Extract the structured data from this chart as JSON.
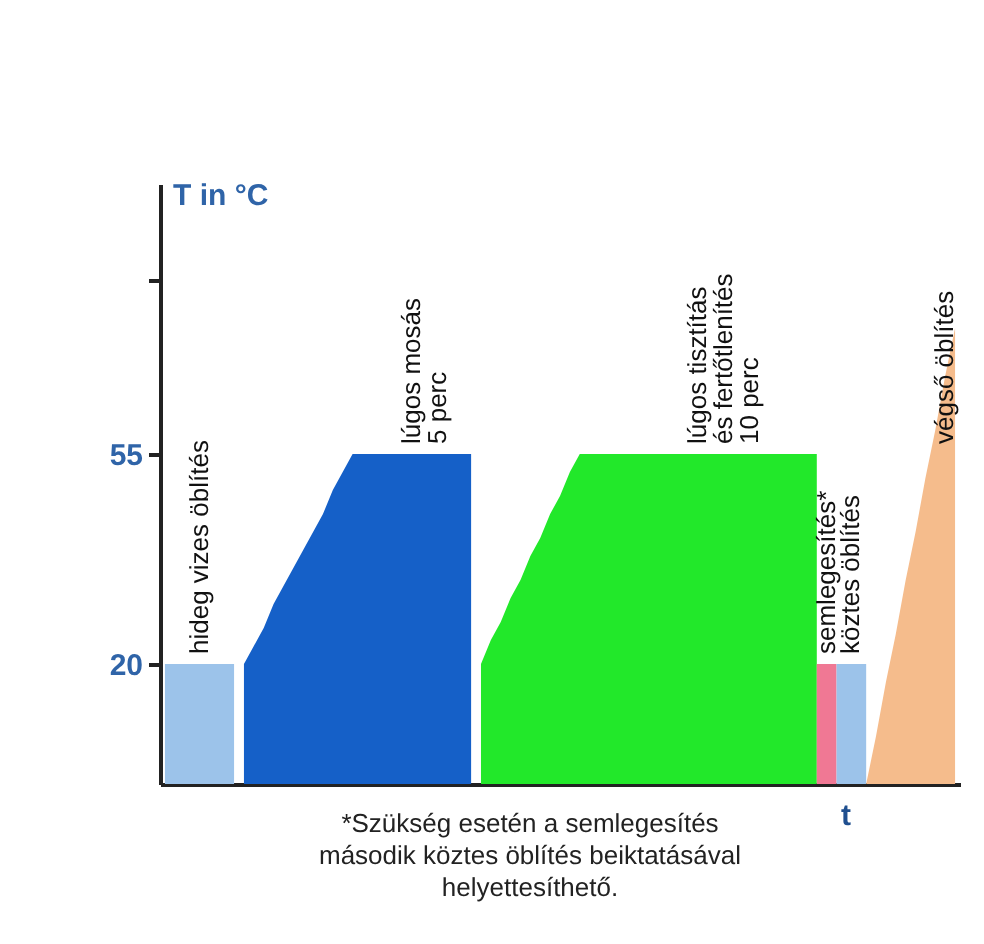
{
  "chart_data": {
    "type": "area",
    "ylabel": "T in °C",
    "xlabel": "t",
    "categories": [
      null,
      null,
      null,
      null,
      null,
      null,
      null,
      null,
      null,
      null,
      null,
      null,
      null,
      null,
      null,
      null,
      null,
      null,
      null,
      null,
      null,
      null,
      null,
      null,
      null,
      null,
      null,
      null,
      null,
      null,
      null,
      null,
      null,
      null,
      null,
      null,
      null,
      null,
      null,
      null,
      null,
      null,
      null,
      null,
      null,
      null,
      null,
      null,
      null,
      null,
      null,
      null,
      null,
      null,
      null,
      null,
      null,
      null,
      null,
      null,
      null,
      null,
      null,
      null,
      null,
      null,
      null,
      null,
      null,
      null,
      null,
      null,
      null,
      null,
      null,
      null,
      null,
      null,
      null,
      null,
      null
    ],
    "ylim": [
      0,
      100
    ],
    "yticks": [
      20,
      55,
      {
        "value": 84,
        "label": null
      }
    ],
    "grid": false,
    "tick_labels": "y",
    "series": [
      {
        "name": "hideg vizes öblítés",
        "color": "#9cc3ea",
        "values": [
          20,
          20,
          20,
          20,
          20,
          20,
          20,
          20,
          null,
          null,
          null,
          null,
          null,
          null,
          null,
          null,
          null,
          null,
          null,
          null,
          null,
          null,
          null,
          null,
          null,
          null,
          null,
          null,
          null,
          null,
          null,
          null,
          null,
          null,
          null,
          null,
          null,
          null,
          null,
          null,
          null,
          null,
          null,
          null,
          null,
          null,
          null,
          null,
          null,
          null,
          null,
          null,
          null,
          null,
          null,
          null,
          null,
          null,
          null,
          null,
          null,
          null,
          null,
          null,
          null,
          null,
          null,
          null,
          null,
          null,
          null,
          null,
          null,
          null,
          null,
          null,
          null,
          null,
          null,
          null,
          null
        ]
      },
      {
        "name": "lúgos mosás\n5 perc",
        "color": "#1560c8",
        "values": [
          null,
          null,
          null,
          null,
          null,
          null,
          null,
          null,
          20,
          23,
          26,
          30,
          33,
          36,
          39,
          42,
          45,
          49,
          52,
          55,
          55,
          55,
          55,
          55,
          55,
          55,
          55,
          55,
          55,
          55,
          55,
          55,
          null,
          null,
          null,
          null,
          null,
          null,
          null,
          null,
          null,
          null,
          null,
          null,
          null,
          null,
          null,
          null,
          null,
          null,
          null,
          null,
          null,
          null,
          null,
          null,
          null,
          null,
          null,
          null,
          null,
          null,
          null,
          null,
          null,
          null,
          null,
          null,
          null,
          null,
          null,
          null,
          null,
          null,
          null,
          null,
          null,
          null,
          null,
          null,
          null
        ]
      },
      {
        "name": "lúgos  tisztítás\nés fertőtlenítés\n10 perc",
        "color": "#22e82a",
        "values": [
          null,
          null,
          null,
          null,
          null,
          null,
          null,
          null,
          null,
          null,
          null,
          null,
          null,
          null,
          null,
          null,
          null,
          null,
          null,
          null,
          null,
          null,
          null,
          null,
          null,
          null,
          null,
          null,
          null,
          null,
          null,
          null,
          20,
          24,
          27,
          31,
          34,
          38,
          41,
          45,
          48,
          52,
          55,
          55,
          55,
          55,
          55,
          55,
          55,
          55,
          55,
          55,
          55,
          55,
          55,
          55,
          55,
          55,
          55,
          55,
          55,
          55,
          55,
          55,
          55,
          55,
          55,
          null,
          null,
          null,
          null,
          null,
          null,
          null,
          null,
          null,
          null,
          null,
          null,
          null,
          null
        ]
      },
      {
        "name": "semlegesítés*",
        "color": "#f07894",
        "values": [
          null,
          null,
          null,
          null,
          null,
          null,
          null,
          null,
          null,
          null,
          null,
          null,
          null,
          null,
          null,
          null,
          null,
          null,
          null,
          null,
          null,
          null,
          null,
          null,
          null,
          null,
          null,
          null,
          null,
          null,
          null,
          null,
          null,
          null,
          null,
          null,
          null,
          null,
          null,
          null,
          null,
          null,
          null,
          null,
          null,
          null,
          null,
          null,
          null,
          null,
          null,
          null,
          null,
          null,
          null,
          null,
          null,
          null,
          null,
          null,
          null,
          null,
          null,
          null,
          null,
          null,
          20,
          20,
          20,
          null,
          null,
          null,
          null,
          null,
          null,
          null,
          null,
          null,
          null,
          null,
          null
        ]
      },
      {
        "name": "köztes öblítés",
        "color": "#9cc3ea",
        "values": [
          null,
          null,
          null,
          null,
          null,
          null,
          null,
          null,
          null,
          null,
          null,
          null,
          null,
          null,
          null,
          null,
          null,
          null,
          null,
          null,
          null,
          null,
          null,
          null,
          null,
          null,
          null,
          null,
          null,
          null,
          null,
          null,
          null,
          null,
          null,
          null,
          null,
          null,
          null,
          null,
          null,
          null,
          null,
          null,
          null,
          null,
          null,
          null,
          null,
          null,
          null,
          null,
          null,
          null,
          null,
          null,
          null,
          null,
          null,
          null,
          null,
          null,
          null,
          null,
          null,
          null,
          null,
          null,
          20,
          20,
          20,
          20,
          null,
          null,
          null,
          null,
          null,
          null,
          null,
          null,
          null
        ]
      },
      {
        "name": "végső öblítés",
        "color": "#f5bc8c",
        "values": [
          null,
          null,
          null,
          null,
          null,
          null,
          null,
          null,
          null,
          null,
          null,
          null,
          null,
          null,
          null,
          null,
          null,
          null,
          null,
          null,
          null,
          null,
          null,
          null,
          null,
          null,
          null,
          null,
          null,
          null,
          null,
          null,
          null,
          null,
          null,
          null,
          null,
          null,
          null,
          null,
          null,
          null,
          null,
          null,
          null,
          null,
          null,
          null,
          null,
          null,
          null,
          null,
          null,
          null,
          null,
          null,
          null,
          null,
          null,
          null,
          null,
          null,
          null,
          null,
          null,
          null,
          null,
          null,
          null,
          null,
          null,
          0,
          8,
          17,
          25,
          34,
          42,
          51,
          59,
          68,
          76
        ]
      }
    ],
    "annotations": [
      "*Szükség esetén a semlegesítés\nmásodik köztes öblítés beiktatásával\nhelyettesíthető."
    ]
  }
}
